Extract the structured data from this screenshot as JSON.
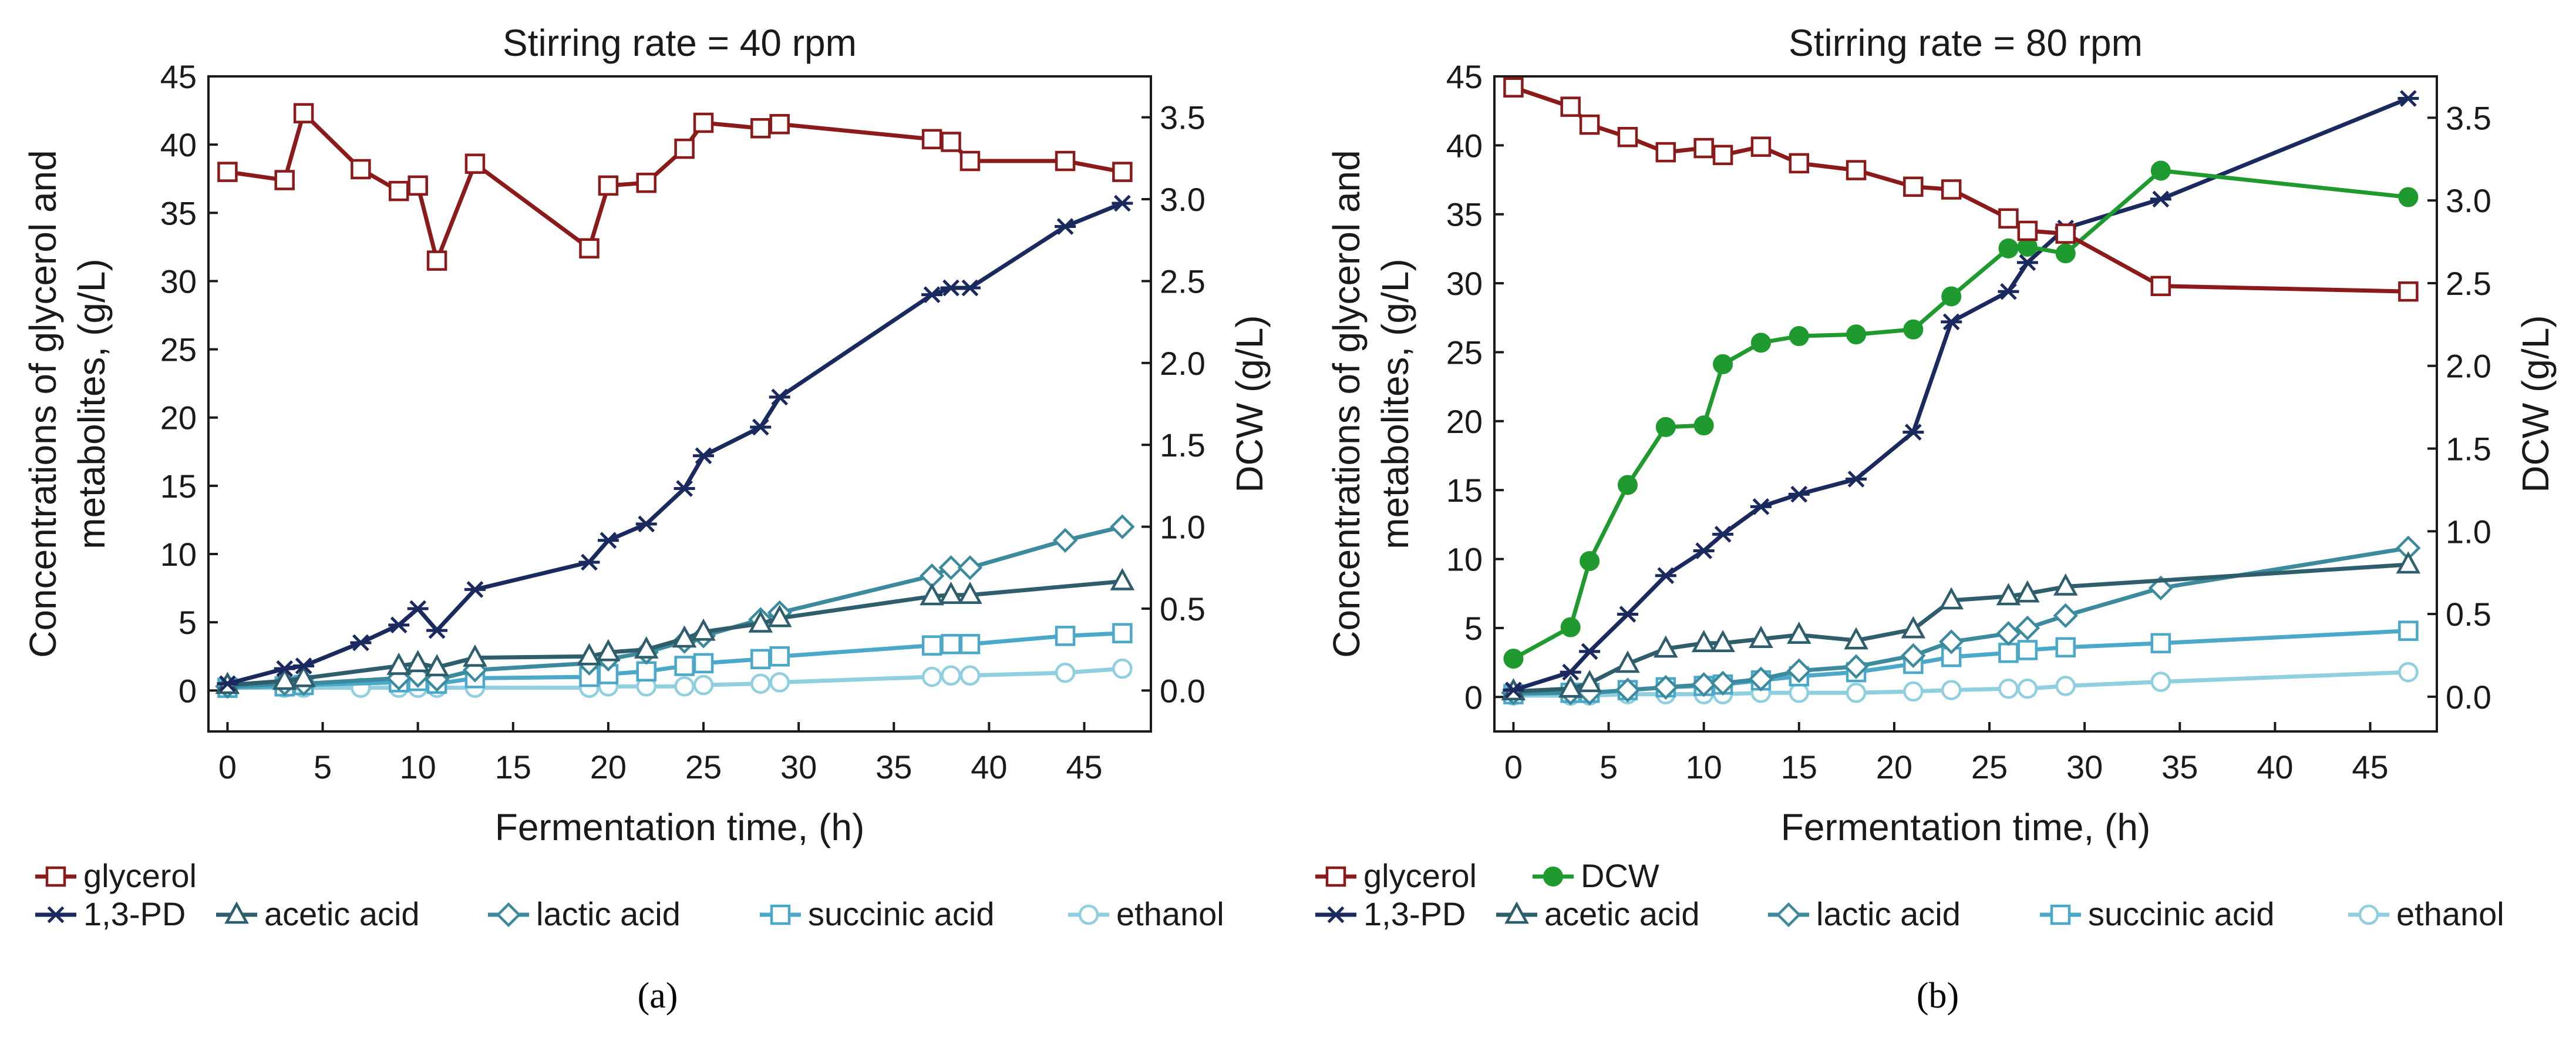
{
  "chart_data": [
    {
      "type": "line",
      "panel": "a",
      "panel_label": "(a)",
      "title": "Stirring rate = 40 rpm",
      "xlabel": "Fermentation time, (h)",
      "ylabel": "Concentrations of glycerol and metabolites, (g/L)",
      "ylabel_lines": [
        "Concentrations of glycerol and",
        "metabolites, (g/L)"
      ],
      "y2label": "DCW (g/L)",
      "xlim": [
        -1,
        48.5
      ],
      "ylim": [
        -3,
        45
      ],
      "y2lim": [
        -0.25,
        3.75
      ],
      "xticks": [
        "0",
        "5",
        "10",
        "15",
        "20",
        "25",
        "30",
        "35",
        "40",
        "45"
      ],
      "yticks": [
        "0",
        "5",
        "10",
        "15",
        "20",
        "25",
        "30",
        "35",
        "40",
        "45"
      ],
      "y2ticks": [
        "0.0",
        "0.5",
        "1.0",
        "1.5",
        "2.0",
        "2.5",
        "3.0",
        "3.5"
      ],
      "legend_rows": [
        [
          "glycerol"
        ],
        [
          "1,3-PD",
          "acetic acid",
          "lactic acid",
          "succinic acid",
          "ethanol"
        ]
      ],
      "series": [
        {
          "name": "glycerol",
          "axis": "left",
          "marker": "square",
          "color": "#8b1a1a",
          "x": [
            0,
            3,
            4,
            7,
            9,
            10,
            11,
            13,
            19,
            20,
            22,
            24,
            25,
            28,
            29,
            37,
            38,
            39,
            44,
            47
          ],
          "y": [
            38,
            37.4,
            42.3,
            38.2,
            36.6,
            37,
            31.5,
            38.6,
            32.4,
            37,
            37.2,
            39.7,
            41.6,
            41.2,
            41.5,
            40.4,
            40.2,
            38.8,
            38.8,
            38
          ]
        },
        {
          "name": "1,3-PD",
          "axis": "left",
          "marker": "star",
          "color": "#1b2a5e",
          "x": [
            0,
            3,
            4,
            7,
            9,
            10,
            11,
            13,
            19,
            20,
            22,
            24,
            25,
            28,
            29,
            37,
            38,
            39,
            44,
            47
          ],
          "y": [
            0.5,
            1.6,
            1.8,
            3.5,
            4.8,
            6,
            4.4,
            7.4,
            9.4,
            11,
            12.2,
            14.8,
            17.2,
            19.3,
            21.5,
            29,
            29.5,
            29.5,
            34,
            35.7
          ]
        },
        {
          "name": "acetic acid",
          "axis": "left",
          "marker": "triangle",
          "color": "#2e5d6b",
          "x": [
            0,
            3,
            4,
            9,
            10,
            11,
            13,
            19,
            20,
            22,
            24,
            25,
            28,
            29,
            37,
            38,
            39,
            47
          ],
          "y": [
            0.4,
            0.7,
            0.9,
            1.8,
            2,
            1.7,
            2.4,
            2.5,
            2.8,
            3,
            3.8,
            4.3,
            4.9,
            5.3,
            6.9,
            7,
            7,
            8
          ]
        },
        {
          "name": "lactic acid",
          "axis": "left",
          "marker": "diamond",
          "color": "#3c8a9e",
          "x": [
            0,
            3,
            4,
            9,
            10,
            11,
            13,
            19,
            20,
            22,
            24,
            25,
            28,
            29,
            37,
            38,
            39,
            44,
            47
          ],
          "y": [
            0.3,
            0.5,
            0.5,
            0.9,
            1.1,
            0.8,
            1.5,
            2,
            2.3,
            2.8,
            3.6,
            4,
            5.2,
            5.7,
            8.4,
            9,
            9,
            11,
            12
          ]
        },
        {
          "name": "succinic acid",
          "axis": "left",
          "marker": "square",
          "color": "#4ba8c8",
          "x": [
            0,
            3,
            4,
            9,
            10,
            11,
            13,
            19,
            20,
            22,
            24,
            25,
            28,
            29,
            37,
            38,
            39,
            44,
            47
          ],
          "y": [
            0.2,
            0.3,
            0.4,
            0.6,
            0.7,
            0.5,
            0.9,
            1,
            1.2,
            1.4,
            1.8,
            2,
            2.3,
            2.5,
            3.3,
            3.4,
            3.4,
            4,
            4.2
          ]
        },
        {
          "name": "ethanol",
          "axis": "left",
          "marker": "circle",
          "color": "#8fcfe0",
          "x": [
            0,
            3,
            4,
            7,
            9,
            10,
            11,
            13,
            19,
            20,
            22,
            24,
            25,
            28,
            29,
            37,
            38,
            39,
            44,
            47
          ],
          "y": [
            0.2,
            0.2,
            0.2,
            0.2,
            0.2,
            0.2,
            0.2,
            0.2,
            0.2,
            0.3,
            0.3,
            0.3,
            0.4,
            0.5,
            0.6,
            1,
            1.1,
            1.1,
            1.3,
            1.6
          ]
        }
      ]
    },
    {
      "type": "line",
      "panel": "b",
      "panel_label": "(b)",
      "title": "Stirring rate = 80 rpm",
      "xlabel": "Fermentation time, (h)",
      "ylabel": "Concentrations of glycerol and metabolites, (g/L)",
      "ylabel_lines": [
        "Concentrations of glycerol and",
        "metabolites, (g/L)"
      ],
      "y2label": "DCW (g/L)",
      "xlim": [
        -1,
        48.5
      ],
      "ylim": [
        -2.5,
        45
      ],
      "y2lim": [
        -0.21,
        3.75
      ],
      "xticks": [
        "0",
        "5",
        "10",
        "15",
        "20",
        "25",
        "30",
        "35",
        "40",
        "45"
      ],
      "yticks": [
        "0",
        "5",
        "10",
        "15",
        "20",
        "25",
        "30",
        "35",
        "40",
        "45"
      ],
      "y2ticks": [
        "0.0",
        "0.5",
        "1.0",
        "1.5",
        "2.0",
        "2.5",
        "3.0",
        "3.5"
      ],
      "legend_rows": [
        [
          "glycerol",
          "DCW"
        ],
        [
          "1,3-PD",
          "acetic acid",
          "lactic acid",
          "succinic acid",
          "ethanol"
        ]
      ],
      "series": [
        {
          "name": "glycerol",
          "axis": "left",
          "marker": "square",
          "color": "#8b1a1a",
          "x": [
            0,
            3,
            4,
            6,
            8,
            10,
            11,
            13,
            15,
            18,
            21,
            23,
            26,
            27,
            29,
            34,
            47
          ],
          "y": [
            44.2,
            42.8,
            41.5,
            40.6,
            39.5,
            39.8,
            39.3,
            39.9,
            38.7,
            38.2,
            37,
            36.8,
            34.7,
            33.8,
            33.6,
            29.8,
            29.4
          ]
        },
        {
          "name": "DCW",
          "axis": "right",
          "marker": "filled-circle",
          "color": "#1e9a2e",
          "x": [
            0,
            3,
            4,
            6,
            8,
            10,
            11,
            13,
            15,
            18,
            21,
            23,
            26,
            27,
            29,
            34,
            47
          ],
          "y": [
            0.23,
            0.42,
            0.82,
            1.28,
            1.63,
            1.64,
            2.01,
            2.14,
            2.18,
            2.19,
            2.22,
            2.42,
            2.71,
            2.72,
            2.68,
            3.18,
            3.02
          ]
        },
        {
          "name": "1,3-PD",
          "axis": "left",
          "marker": "star",
          "color": "#1b2a5e",
          "x": [
            0,
            3,
            4,
            6,
            8,
            10,
            11,
            13,
            15,
            18,
            21,
            23,
            26,
            27,
            29,
            34,
            47
          ],
          "y": [
            0.5,
            1.8,
            3.3,
            6,
            8.8,
            10.6,
            11.8,
            13.8,
            14.7,
            15.8,
            19.2,
            27.2,
            29.4,
            31.5,
            34,
            36.1,
            43.4
          ]
        },
        {
          "name": "acetic acid",
          "axis": "left",
          "marker": "triangle",
          "color": "#2e5d6b",
          "x": [
            0,
            3,
            4,
            6,
            8,
            10,
            11,
            13,
            15,
            18,
            21,
            23,
            26,
            27,
            29,
            47
          ],
          "y": [
            0.4,
            0.6,
            1,
            2.4,
            3.5,
            3.9,
            3.9,
            4.2,
            4.5,
            4.1,
            4.9,
            7,
            7.3,
            7.5,
            8,
            9.6
          ]
        },
        {
          "name": "lactic acid",
          "axis": "left",
          "marker": "diamond",
          "color": "#3c8a9e",
          "x": [
            0,
            3,
            4,
            6,
            8,
            10,
            11,
            13,
            15,
            18,
            21,
            23,
            26,
            27,
            29,
            34,
            47
          ],
          "y": [
            0.3,
            0.3,
            0.3,
            0.5,
            0.7,
            0.9,
            1,
            1.3,
            1.9,
            2.2,
            3,
            4,
            4.6,
            5,
            5.9,
            7.9,
            10.8
          ]
        },
        {
          "name": "succinic acid",
          "axis": "left",
          "marker": "square",
          "color": "#4ba8c8",
          "x": [
            0,
            3,
            4,
            6,
            8,
            10,
            11,
            13,
            15,
            18,
            21,
            23,
            26,
            27,
            29,
            34,
            47
          ],
          "y": [
            0.2,
            0.3,
            0.3,
            0.5,
            0.7,
            0.8,
            0.9,
            1.2,
            1.5,
            1.8,
            2.4,
            2.9,
            3.2,
            3.4,
            3.6,
            3.9,
            4.8
          ]
        },
        {
          "name": "ethanol",
          "axis": "left",
          "marker": "circle",
          "color": "#8fcfe0",
          "x": [
            0,
            3,
            4,
            6,
            8,
            10,
            11,
            13,
            15,
            18,
            21,
            23,
            26,
            27,
            29,
            34,
            47
          ],
          "y": [
            0.1,
            0.1,
            0.1,
            0.2,
            0.2,
            0.2,
            0.2,
            0.3,
            0.3,
            0.3,
            0.4,
            0.5,
            0.6,
            0.6,
            0.8,
            1.1,
            1.8
          ]
        }
      ]
    }
  ]
}
